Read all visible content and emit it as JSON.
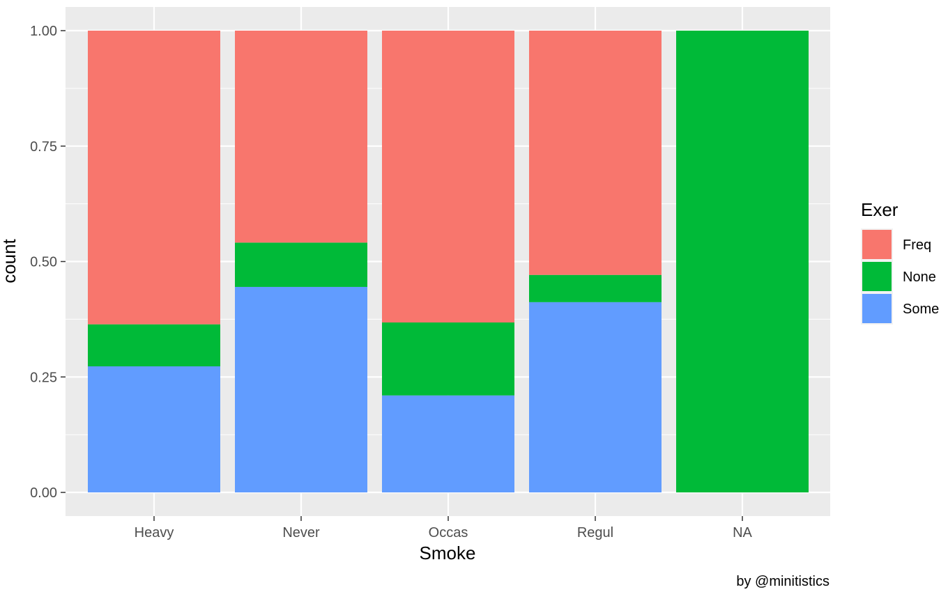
{
  "chart_data": {
    "type": "bar",
    "stacked": true,
    "position": "fill",
    "categories": [
      "Heavy",
      "Never",
      "Occas",
      "Regul",
      "NA"
    ],
    "series": [
      {
        "name": "Freq",
        "color": "#F8766D",
        "values": [
          0.636,
          0.459,
          0.632,
          0.529,
          0.0
        ]
      },
      {
        "name": "None",
        "color": "#00BA38",
        "values": [
          0.091,
          0.096,
          0.158,
          0.059,
          1.0
        ]
      },
      {
        "name": "Some",
        "color": "#619CFF",
        "values": [
          0.273,
          0.445,
          0.21,
          0.412,
          0.0
        ]
      }
    ],
    "stack_order_bottom_to_top": [
      "Some",
      "None",
      "Freq"
    ],
    "xlabel": "Smoke",
    "ylabel": "count",
    "ylim": [
      0,
      1
    ],
    "yticks": [
      "0.00",
      "0.25",
      "0.50",
      "0.75",
      "1.00"
    ],
    "legend": {
      "title": "Exer",
      "placement": "right"
    },
    "caption": "by @minitistics",
    "grid": true,
    "panel_background": "#EBEBEB"
  }
}
